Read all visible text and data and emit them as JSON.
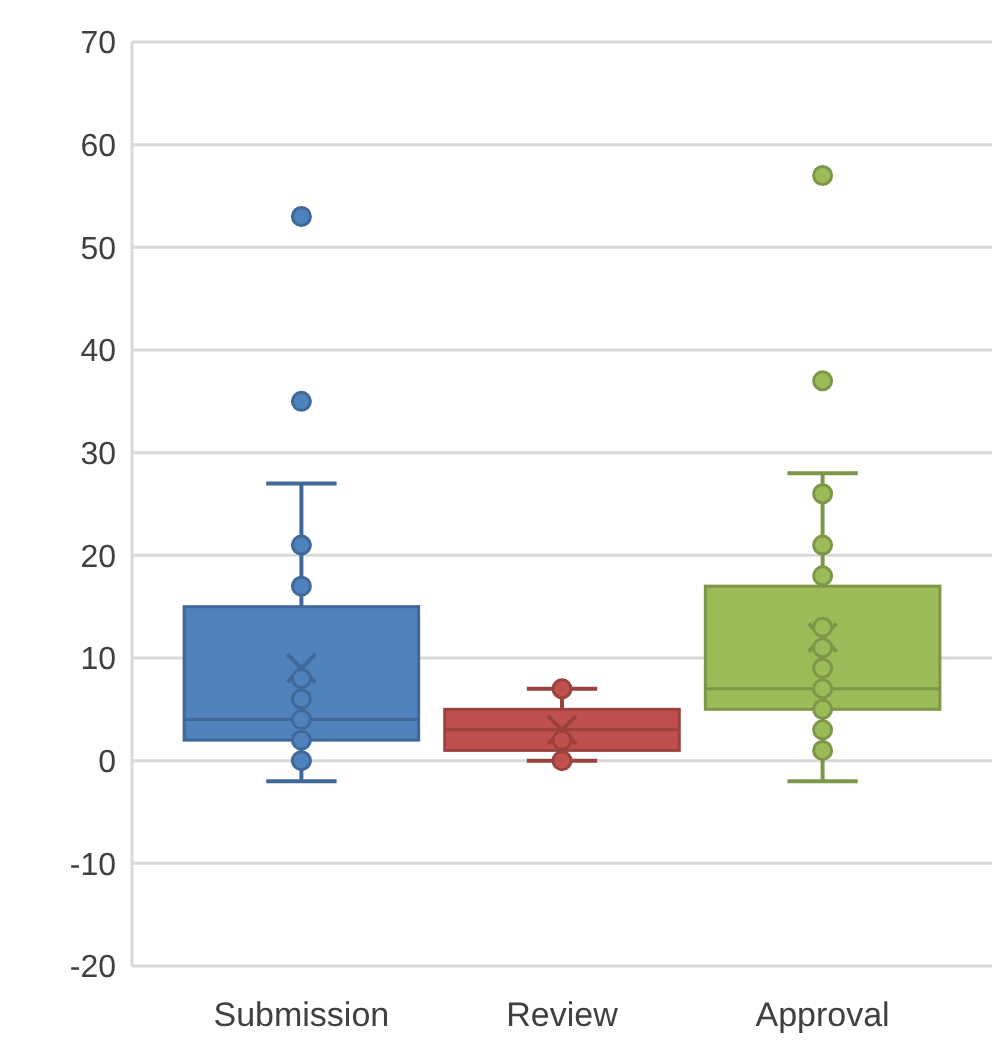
{
  "chart_data": {
    "type": "box",
    "categories": [
      "Submission",
      "Review",
      "Approval"
    ],
    "colors": [
      "#4f81bd",
      "#c0504d",
      "#9bbb59"
    ],
    "boxes": [
      {
        "low": -2,
        "q1": 2,
        "median": 4,
        "q3": 15,
        "high": 27,
        "mean": 9,
        "outliers": [
          35,
          53
        ]
      },
      {
        "low": 0,
        "q1": 1,
        "median": 3,
        "q3": 5,
        "high": 7,
        "mean": 3
      },
      {
        "low": -2,
        "q1": 5,
        "median": 7,
        "q3": 17,
        "high": 28,
        "mean": 12,
        "outliers": [
          37,
          57
        ]
      }
    ],
    "series": [
      {
        "type": "scatter",
        "color": "#4f81bd",
        "x": [
          "Submission",
          "Submission",
          "Submission",
          "Submission",
          "Submission",
          "Submission",
          "Submission"
        ],
        "values": [
          0,
          2,
          4,
          6,
          8,
          17,
          21
        ]
      },
      {
        "type": "scatter",
        "color": "#c0504d",
        "x": [
          "Review",
          "Review",
          "Review"
        ],
        "values": [
          0,
          2,
          7
        ]
      },
      {
        "type": "scatter",
        "color": "#9bbb59",
        "x": [
          "Approval",
          "Approval",
          "Approval",
          "Approval",
          "Approval",
          "Approval",
          "Approval",
          "Approval",
          "Approval",
          "Approval"
        ],
        "values": [
          1,
          3,
          5,
          7,
          9,
          11,
          13,
          18,
          21,
          26
        ]
      }
    ],
    "ylim": [
      -20,
      70
    ],
    "yticks": [
      -20,
      -10,
      0,
      10,
      20,
      30,
      40,
      50,
      60,
      70
    ],
    "grid": "y",
    "marker": "circle"
  }
}
